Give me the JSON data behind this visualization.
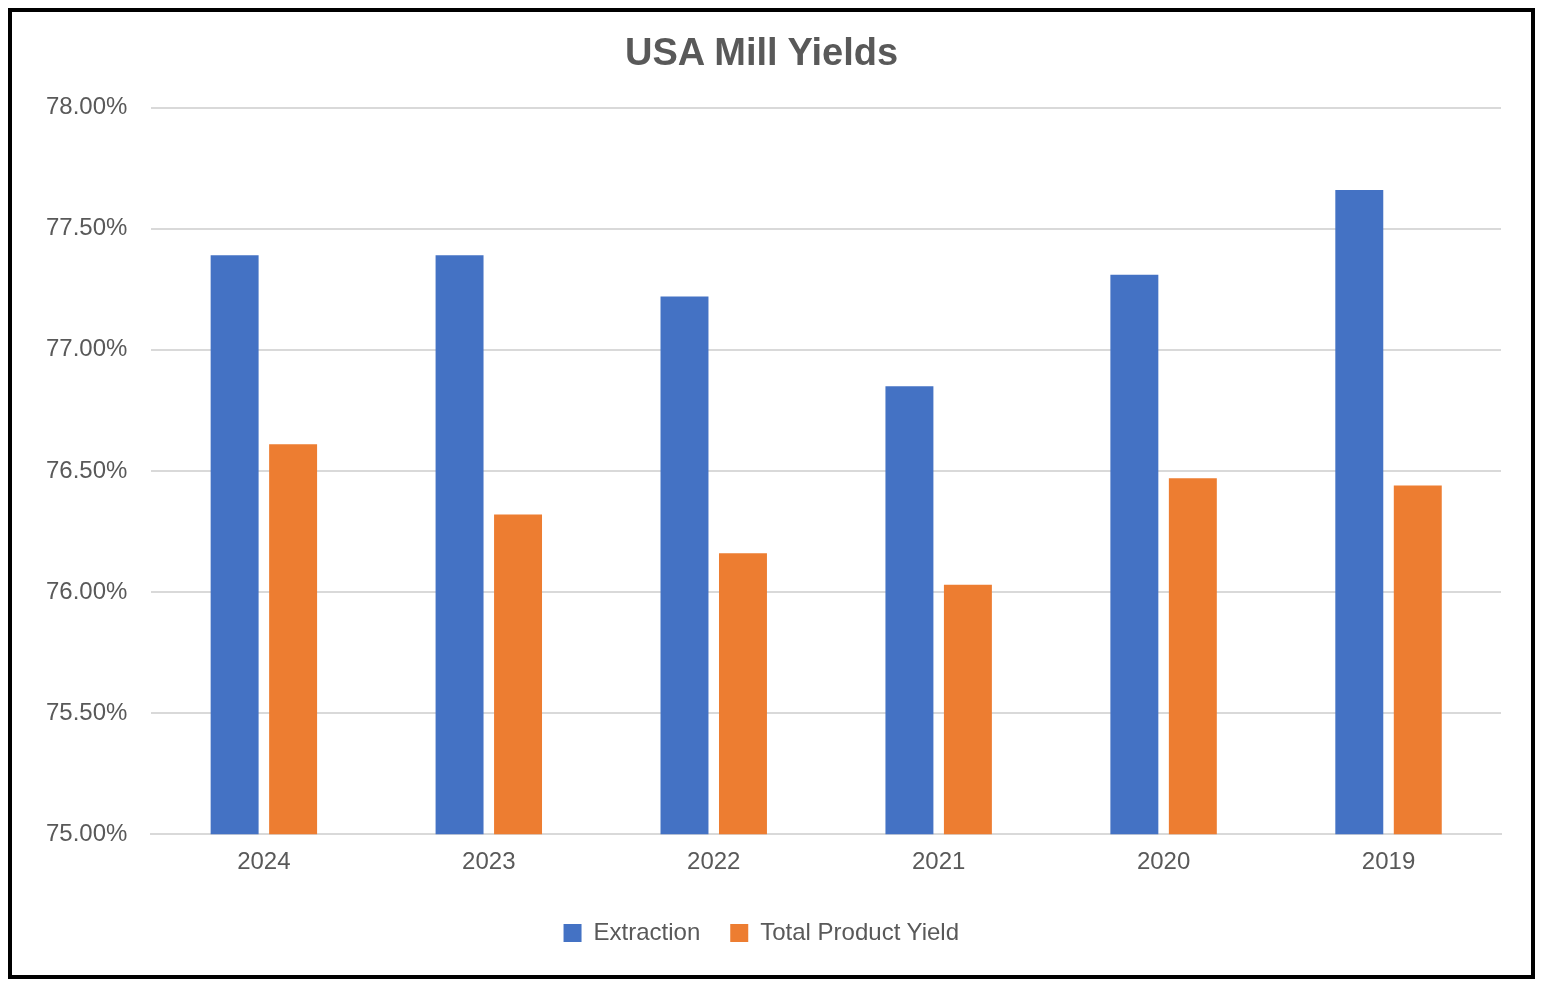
{
  "chart_data": {
    "type": "bar",
    "title": "USA Mill Yields",
    "categories": [
      "2024",
      "2023",
      "2022",
      "2021",
      "2020",
      "2019"
    ],
    "series": [
      {
        "name": "Extraction",
        "color": "#4472c4",
        "values": [
          77.39,
          77.39,
          77.22,
          76.85,
          77.31,
          77.66
        ]
      },
      {
        "name": "Total Product Yield",
        "color": "#ed7d31",
        "values": [
          76.61,
          76.32,
          76.16,
          76.03,
          76.47,
          76.44
        ]
      }
    ],
    "ylim": [
      75,
      78
    ],
    "yticks": [
      {
        "value": 75,
        "label": "75.00%"
      },
      {
        "value": 75.5,
        "label": "75.50%"
      },
      {
        "value": 76,
        "label": "76.00%"
      },
      {
        "value": 76.5,
        "label": "76.50%"
      },
      {
        "value": 77,
        "label": "77.00%"
      },
      {
        "value": 77.5,
        "label": "77.50%"
      },
      {
        "value": 78,
        "label": "78.00%"
      }
    ],
    "grid": "y",
    "legend": "bottom"
  }
}
